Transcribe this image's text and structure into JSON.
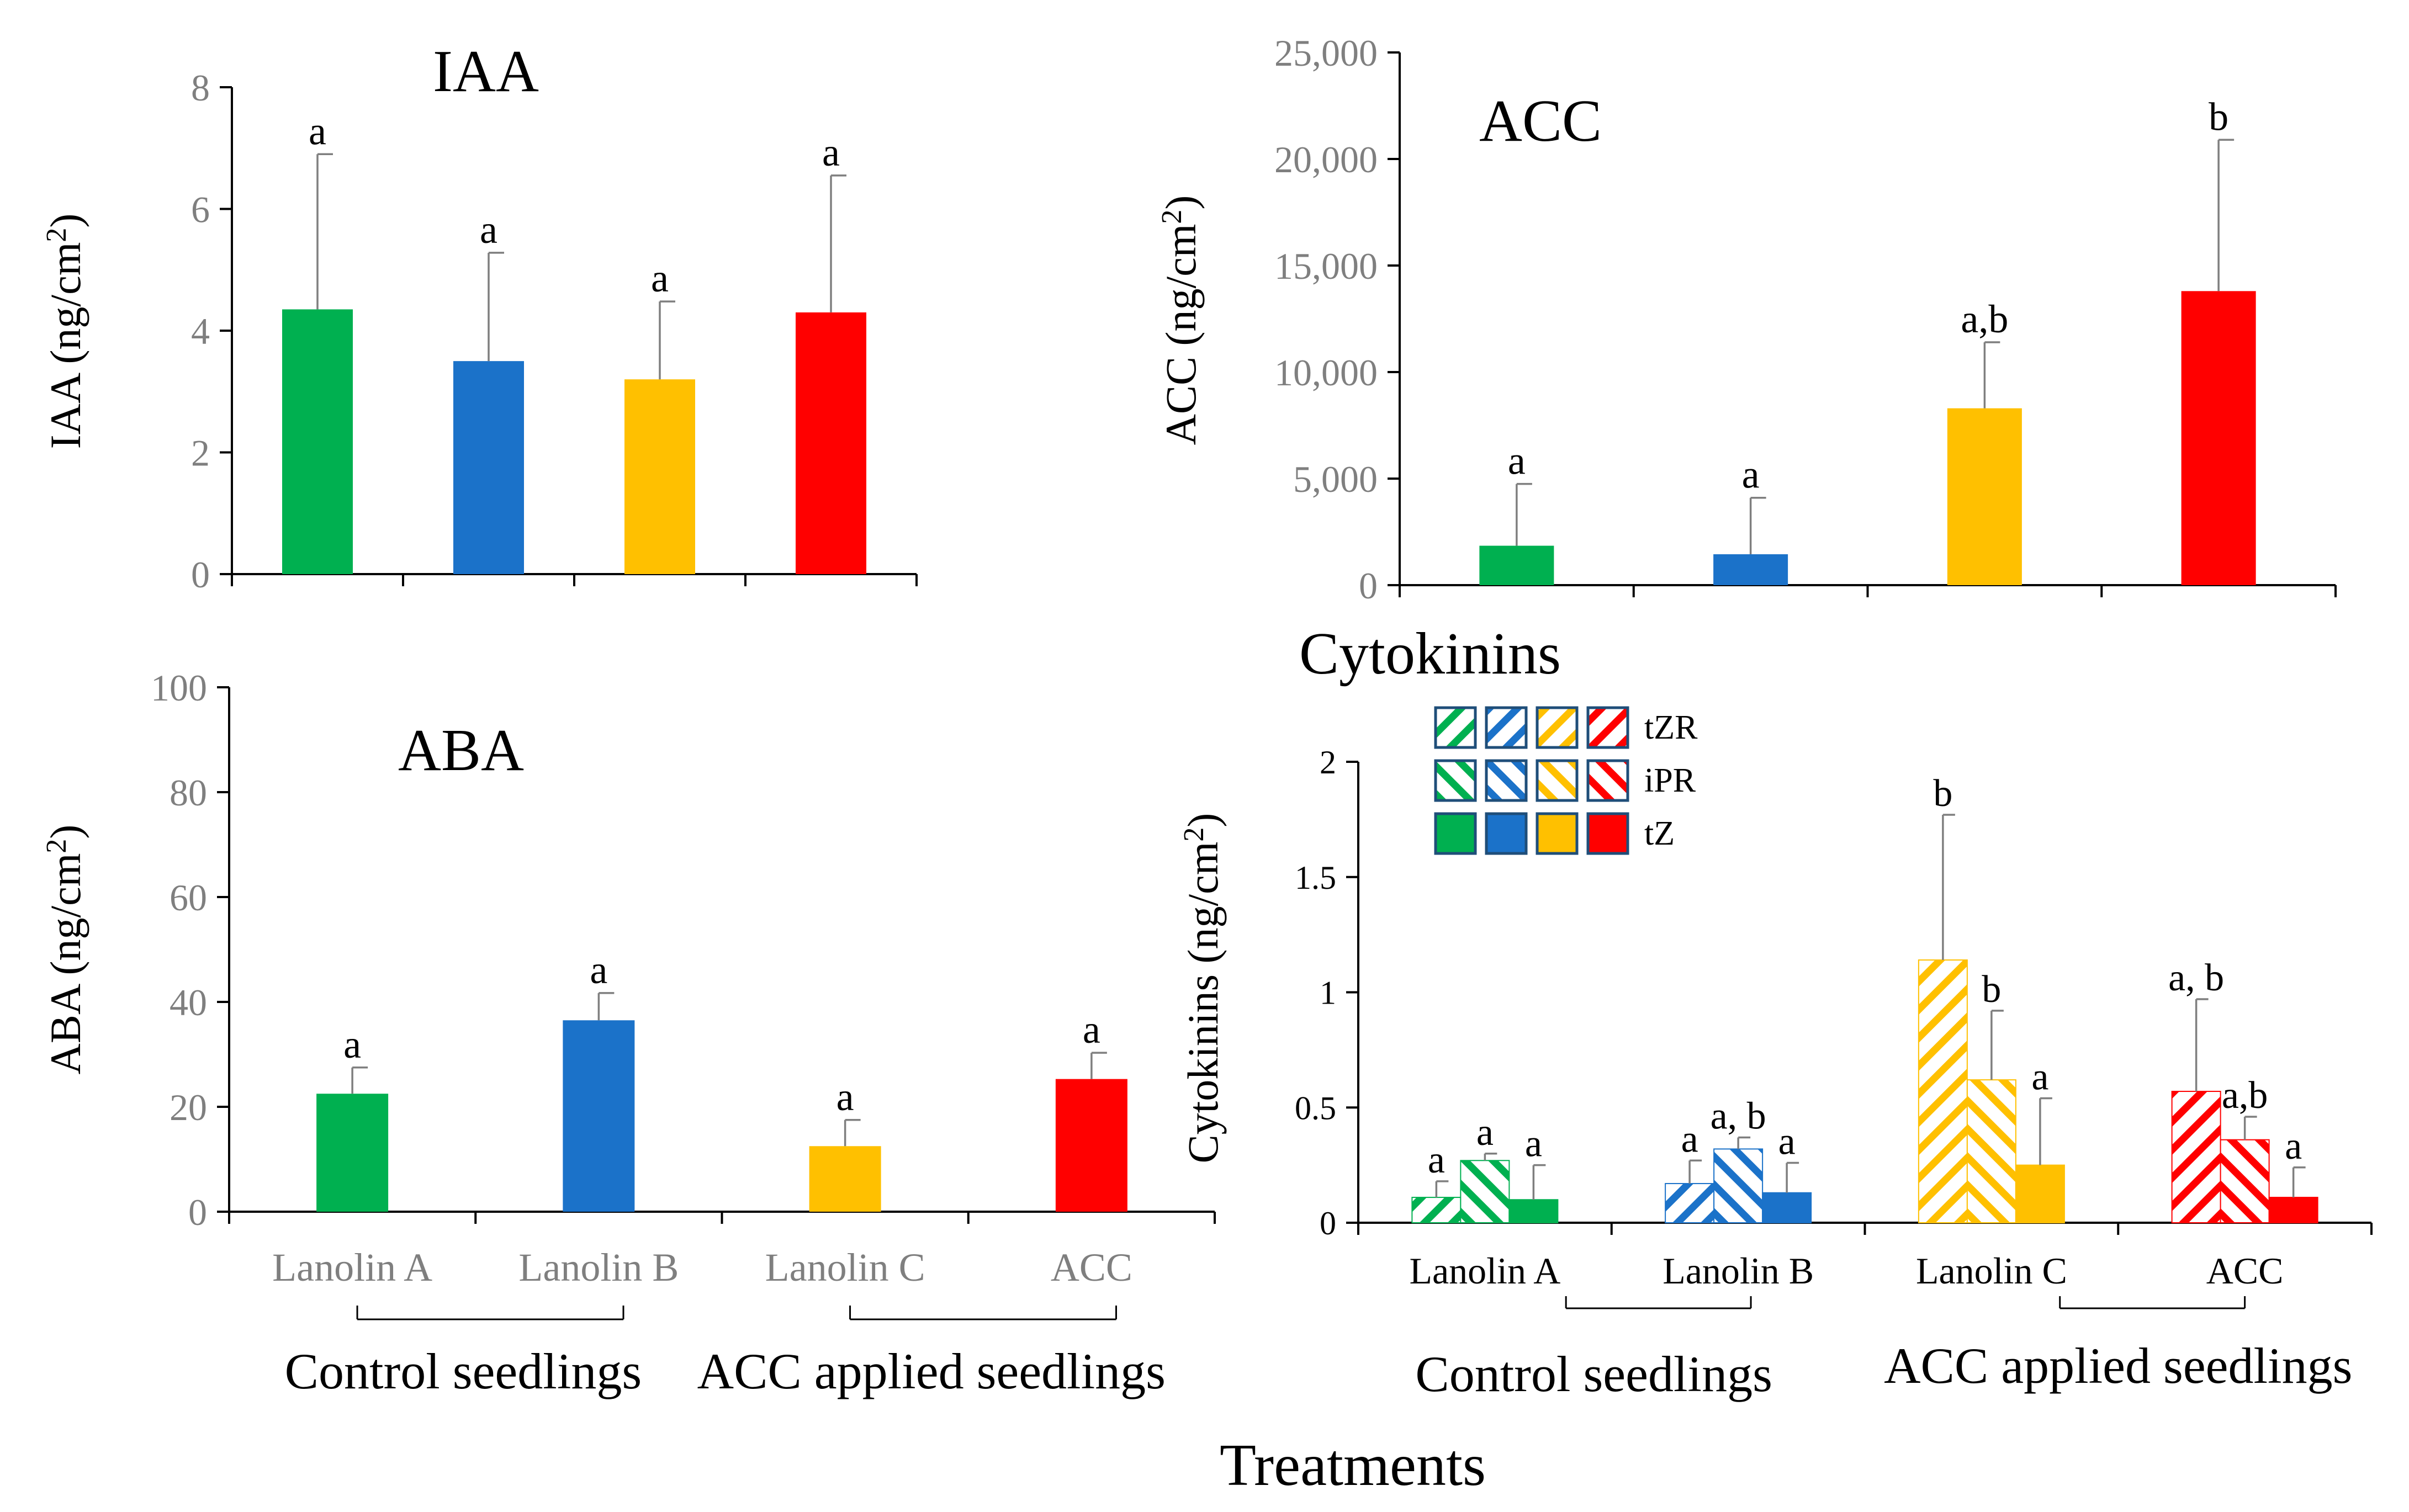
{
  "figure": {
    "x_title": "Treatments",
    "colors": {
      "green": "#00b050",
      "blue": "#1b72c9",
      "yellow": "#ffc000",
      "red": "#ff0000",
      "axis": "#000000",
      "tick_text": "#7f7f7f",
      "error": "#7f7f7f"
    }
  },
  "chart_data": [
    {
      "id": "iaa",
      "type": "bar",
      "title": "IAA",
      "ylabel": "IAA (ng/cm²)",
      "ylabel_main": "IAA (ng/cm",
      "ylabel_sup": "2",
      "ylabel_end": ")",
      "ylim": [
        0,
        8
      ],
      "yticks": [
        0,
        2,
        4,
        6,
        8
      ],
      "ytick_labels": [
        "0",
        "2",
        "4",
        "6",
        "8"
      ],
      "categories": [
        "Lanolin A",
        "Lanolin B",
        "Lanolin C",
        "ACC"
      ],
      "show_category_labels": false,
      "values": [
        4.35,
        3.5,
        3.2,
        4.3
      ],
      "errors": [
        2.55,
        1.78,
        1.28,
        2.25
      ],
      "letters": [
        "a",
        "a",
        "a",
        "a"
      ]
    },
    {
      "id": "acc",
      "type": "bar",
      "title": "ACC",
      "ylabel": "ACC (ng/cm²)",
      "ylabel_main": "ACC (ng/cm",
      "ylabel_sup": "2",
      "ylabel_end": ")",
      "ylim": [
        0,
        25000
      ],
      "yticks": [
        0,
        5000,
        10000,
        15000,
        20000,
        25000
      ],
      "ytick_labels": [
        "0",
        "5,000",
        "10,000",
        "15,000",
        "20,000",
        "25,000"
      ],
      "categories": [
        "Lanolin A",
        "Lanolin B",
        "Lanolin C",
        "ACC"
      ],
      "show_category_labels": false,
      "values": [
        1850,
        1450,
        8300,
        13800
      ],
      "errors": [
        2900,
        2650,
        3100,
        7100
      ],
      "letters": [
        "a",
        "a",
        "a,b",
        "b"
      ]
    },
    {
      "id": "aba",
      "type": "bar",
      "title": "ABA",
      "ylabel": "ABA (ng/cm²)",
      "ylabel_main": "ABA (ng/cm",
      "ylabel_sup": "2",
      "ylabel_end": ")",
      "ylim": [
        0,
        100
      ],
      "yticks": [
        0,
        20,
        40,
        60,
        80,
        100
      ],
      "ytick_labels": [
        "0",
        "20",
        "40",
        "60",
        "80",
        "100"
      ],
      "categories": [
        "Lanolin A",
        "Lanolin B",
        "Lanolin C",
        "ACC"
      ],
      "show_category_labels": true,
      "values": [
        22.5,
        36.5,
        12.5,
        25.3
      ],
      "errors": [
        5.0,
        5.2,
        5.0,
        5.0
      ],
      "letters": [
        "a",
        "a",
        "a",
        "a"
      ],
      "groups": [
        "Control seedlings",
        "ACC applied seedlings"
      ]
    },
    {
      "id": "cytokinins",
      "type": "bar",
      "title": "Cytokinins",
      "ylabel": "Cytokinins (ng/cm²)",
      "ylabel_main": "Cytokinins (ng/cm",
      "ylabel_sup": "2",
      "ylabel_end": ")",
      "ylim": [
        0,
        2
      ],
      "yticks": [
        0,
        0.5,
        1,
        1.5,
        2
      ],
      "ytick_labels": [
        "0",
        "0.5",
        "1",
        "1.5",
        "2"
      ],
      "categories": [
        "Lanolin A",
        "Lanolin B",
        "Lanolin C",
        "ACC"
      ],
      "show_category_labels": true,
      "series": [
        {
          "name": "tZR",
          "values": [
            0.11,
            0.17,
            1.14,
            0.57
          ],
          "errors": [
            0.07,
            0.1,
            0.63,
            0.4
          ],
          "letters": [
            "a",
            "a",
            "b",
            "a, b"
          ]
        },
        {
          "name": "iPR",
          "values": [
            0.27,
            0.32,
            0.62,
            0.36
          ],
          "errors": [
            0.03,
            0.05,
            0.3,
            0.1
          ],
          "letters": [
            "a",
            "a, b",
            "b",
            "a,b"
          ]
        },
        {
          "name": "tZ",
          "values": [
            0.1,
            0.13,
            0.25,
            0.11
          ],
          "errors": [
            0.15,
            0.13,
            0.29,
            0.13
          ],
          "letters": [
            "a",
            "a",
            "a",
            "a"
          ]
        }
      ],
      "legend": [
        "tZR",
        "iPR",
        "tZ"
      ],
      "groups": [
        "Control seedlings",
        "ACC applied seedlings"
      ]
    }
  ]
}
